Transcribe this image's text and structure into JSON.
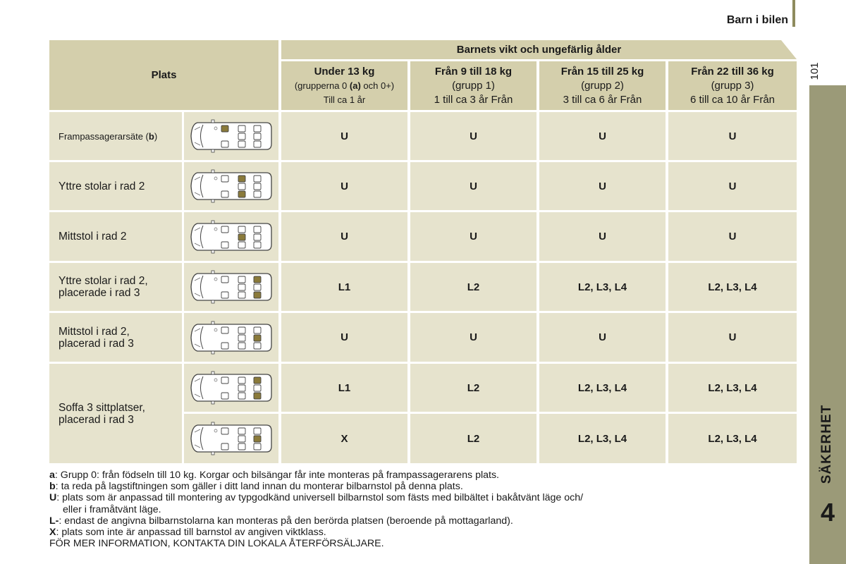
{
  "header": {
    "title": "Barn i bilen",
    "page_number": "101"
  },
  "sidebar": {
    "chapter_title": "SÄKERHET",
    "chapter_number": "4"
  },
  "table": {
    "plats_header": "Plats",
    "super_header": "Barnets vikt och ungefärlig ålder",
    "groups": [
      {
        "title": "Under 13 kg",
        "line2_a": "(grupperna 0 ",
        "line2_b": "(a)",
        "line2_c": " och 0+)",
        "line3": "Till ca 1 år"
      },
      {
        "title": "Från 9 till 18 kg",
        "line2": "(grupp 1)",
        "line3": "1 till ca 3 år Från"
      },
      {
        "title": "Från 15 till 25 kg",
        "line2": "(grupp 2)",
        "line3": "3 till ca 6 år Från"
      },
      {
        "title": "Från 22 till 36 kg",
        "line2": "(grupp 3)",
        "line3": "6 till ca 10 år Från"
      }
    ],
    "rows": [
      {
        "label_a": "Frampassagerarsäte (",
        "label_b": "b",
        "label_c": ")",
        "values": [
          "U",
          "U",
          "U",
          "U"
        ]
      },
      {
        "label": "Yttre stolar i rad 2",
        "values": [
          "U",
          "U",
          "U",
          "U"
        ]
      },
      {
        "label": "Mittstol i rad 2",
        "values": [
          "U",
          "U",
          "U",
          "U"
        ]
      },
      {
        "label_l1": "Yttre stolar i rad 2,",
        "label_l2": "placerade i rad 3",
        "values": [
          "L1",
          "L2",
          "L2, L3, L4",
          "L2, L3, L4"
        ]
      },
      {
        "label_l1": "Mittstol i rad 2,",
        "label_l2": "placerad i rad 3",
        "values": [
          "U",
          "U",
          "U",
          "U"
        ]
      },
      {
        "label_l1": "Soffa 3 sittplatser,",
        "label_l2": "placerad i rad 3",
        "sub_values": [
          [
            "L1",
            "L2",
            "L2, L3, L4",
            "L2, L3, L4"
          ],
          [
            "X",
            "L2",
            "L2, L3, L4",
            "L2, L3, L4"
          ]
        ]
      }
    ]
  },
  "notes": [
    {
      "key": "a",
      "sep": ":",
      "text": "  Grupp 0: från födseln till 10 kg. Korgar och bilsängar får inte monteras på frampassagerarens plats."
    },
    {
      "key": "b",
      "sep": ":",
      "text": "  ta reda på lagstiftningen som gäller i ditt land innan du monterar bilbarnstol på denna plats."
    },
    {
      "key": "U",
      "sep": ":",
      "text": "  plats som är anpassad till montering av typgodkänd universell bilbarnstol som fästs med bilbältet i bakåtvänt läge och/"
    },
    {
      "cont": "eller i framåtvänt läge."
    },
    {
      "key": "L-",
      "sep": ":",
      "text": " endast de angivna bilbarnstolarna kan monteras på den berörda platsen (beroende på mottagarland)."
    },
    {
      "key": "X",
      "sep": ":",
      "text": "  plats som inte är anpassad till barnstol av angiven viktklass."
    },
    {
      "plain": "FÖR MER INFORMATION, KONTAKTA DIN LOKALA ÅTERFÖRSÄLJARE."
    }
  ],
  "colors": {
    "header_bg": "#d4cfac",
    "cell_bg": "#e6e3cd",
    "tab_bg": "#9b9a78",
    "seat_highlight": "#8a7a3a"
  }
}
